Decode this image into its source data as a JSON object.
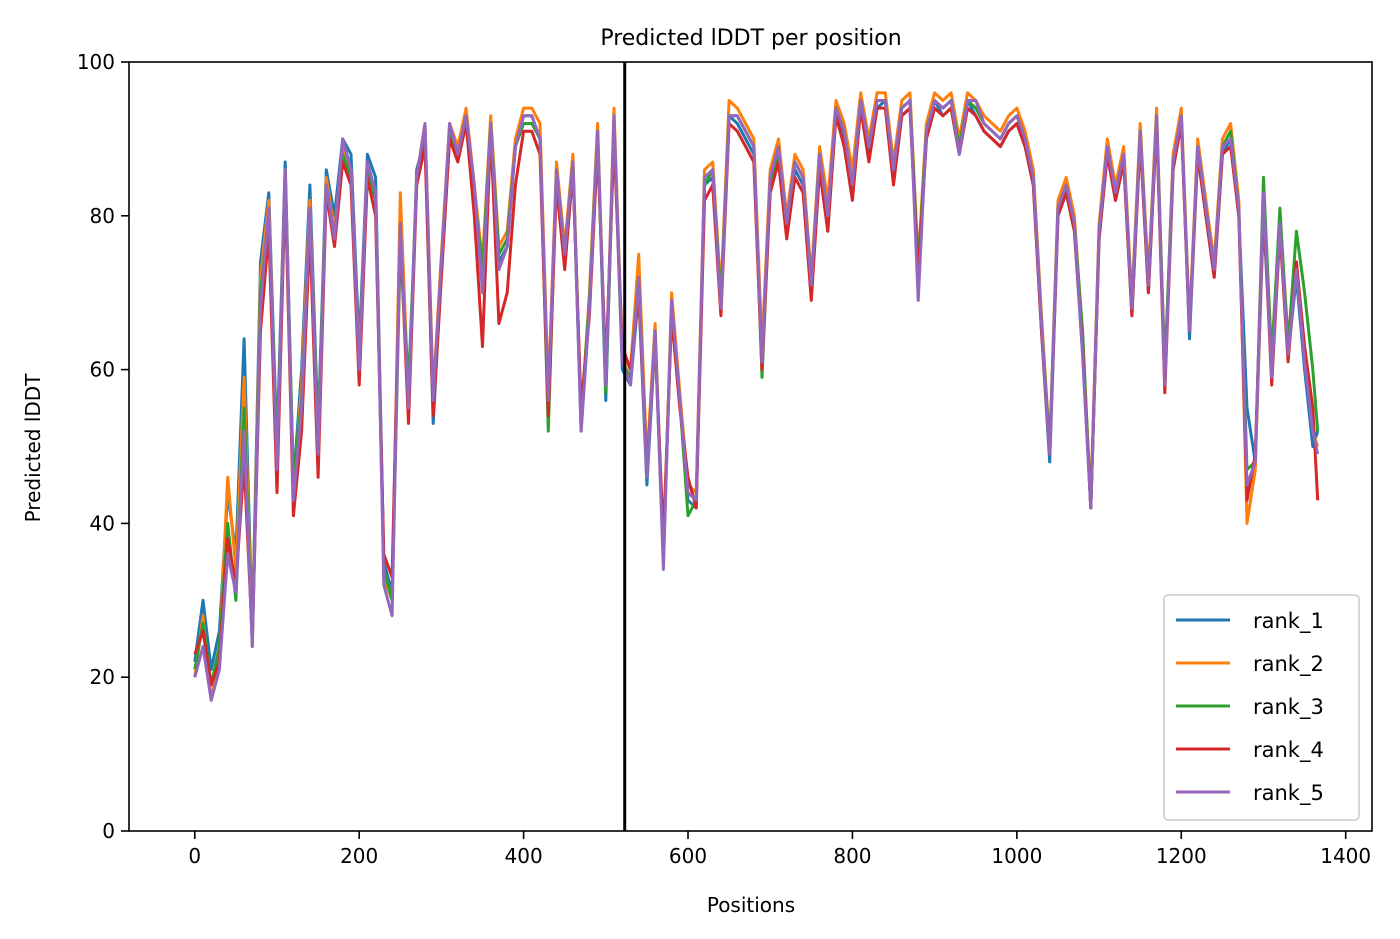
{
  "chart_data": {
    "type": "line",
    "title": "Predicted lDDT per position",
    "xlabel": "Positions",
    "ylabel": "Predicted lDDT",
    "xlim": [
      -80,
      1432
    ],
    "ylim": [
      0,
      100
    ],
    "xticks": [
      0,
      200,
      400,
      600,
      800,
      1000,
      1200,
      1400
    ],
    "yticks": [
      0,
      20,
      40,
      60,
      80,
      100
    ],
    "vline_x": 523,
    "legend_position": "lower-right",
    "grid": false,
    "x": [
      0,
      10,
      20,
      30,
      40,
      50,
      60,
      70,
      80,
      90,
      100,
      110,
      120,
      130,
      140,
      150,
      160,
      170,
      180,
      190,
      200,
      210,
      220,
      230,
      240,
      250,
      260,
      270,
      280,
      290,
      300,
      310,
      320,
      330,
      340,
      350,
      360,
      370,
      380,
      390,
      400,
      410,
      420,
      430,
      440,
      450,
      460,
      470,
      480,
      490,
      500,
      510,
      520,
      530,
      540,
      550,
      560,
      570,
      580,
      590,
      600,
      610,
      620,
      630,
      640,
      650,
      660,
      670,
      680,
      690,
      700,
      710,
      720,
      730,
      740,
      750,
      760,
      770,
      780,
      790,
      800,
      810,
      820,
      830,
      840,
      850,
      860,
      870,
      880,
      890,
      900,
      910,
      920,
      930,
      940,
      950,
      960,
      970,
      980,
      990,
      1000,
      1010,
      1020,
      1030,
      1040,
      1050,
      1060,
      1070,
      1080,
      1090,
      1100,
      1110,
      1120,
      1130,
      1140,
      1150,
      1160,
      1170,
      1180,
      1190,
      1200,
      1210,
      1220,
      1230,
      1240,
      1250,
      1260,
      1270,
      1280,
      1290,
      1300,
      1310,
      1320,
      1330,
      1340,
      1350,
      1360,
      1366
    ],
    "series": [
      {
        "name": "rank_1",
        "color": "#1f77b4",
        "values": [
          22,
          30,
          21,
          26,
          44,
          36,
          64,
          26,
          74,
          83,
          50,
          87,
          45,
          60,
          84,
          52,
          86,
          80,
          90,
          88,
          63,
          88,
          85,
          35,
          31,
          80,
          55,
          86,
          90,
          53,
          73,
          90,
          88,
          92,
          82,
          72,
          92,
          74,
          76,
          89,
          93,
          93,
          90,
          55,
          86,
          74,
          87,
          52,
          68,
          91,
          56,
          92,
          60,
          58,
          70,
          45,
          64,
          36,
          68,
          56,
          43,
          42,
          84,
          85,
          68,
          93,
          92,
          90,
          88,
          61,
          84,
          88,
          78,
          86,
          84,
          70,
          87,
          80,
          93,
          90,
          84,
          95,
          88,
          94,
          95,
          85,
          93,
          94,
          72,
          90,
          95,
          93,
          94,
          88,
          95,
          93,
          91,
          90,
          89,
          91,
          92,
          89,
          84,
          65,
          48,
          80,
          83,
          78,
          62,
          42,
          77,
          88,
          82,
          87,
          67,
          90,
          70,
          92,
          59,
          86,
          93,
          64,
          88,
          80,
          72,
          88,
          90,
          80,
          55,
          48,
          80,
          60,
          78,
          62,
          72,
          60,
          50,
          52
        ]
      },
      {
        "name": "rank_2",
        "color": "#ff7f0e",
        "values": [
          20,
          28,
          17,
          23,
          46,
          34,
          59,
          25,
          72,
          82,
          48,
          86,
          44,
          58,
          82,
          50,
          85,
          78,
          89,
          86,
          61,
          87,
          83,
          33,
          30,
          83,
          56,
          85,
          92,
          57,
          75,
          92,
          89,
          94,
          84,
          74,
          93,
          76,
          78,
          90,
          94,
          94,
          92,
          57,
          87,
          76,
          88,
          53,
          70,
          92,
          58,
          94,
          62,
          60,
          75,
          48,
          66,
          35,
          70,
          57,
          45,
          44,
          86,
          87,
          70,
          95,
          94,
          92,
          90,
          63,
          86,
          90,
          80,
          88,
          86,
          72,
          89,
          82,
          95,
          92,
          86,
          96,
          90,
          96,
          96,
          87,
          95,
          96,
          74,
          92,
          96,
          95,
          96,
          90,
          96,
          95,
          93,
          92,
          91,
          93,
          94,
          91,
          86,
          67,
          50,
          82,
          85,
          80,
          64,
          43,
          79,
          90,
          84,
          89,
          69,
          92,
          72,
          94,
          59,
          88,
          94,
          66,
          90,
          82,
          74,
          90,
          92,
          82,
          40,
          47,
          82,
          62,
          80,
          64,
          74,
          62,
          52,
          50
        ]
      },
      {
        "name": "rank_3",
        "color": "#2ca02c",
        "values": [
          21,
          27,
          19,
          24,
          40,
          30,
          55,
          24,
          70,
          80,
          49,
          85,
          46,
          56,
          80,
          51,
          84,
          77,
          88,
          85,
          60,
          86,
          82,
          34,
          30,
          76,
          58,
          84,
          91,
          55,
          74,
          91,
          88,
          93,
          83,
          73,
          92,
          75,
          77,
          89,
          92,
          92,
          90,
          52,
          86,
          75,
          87,
          54,
          69,
          91,
          57,
          92,
          61,
          59,
          72,
          46,
          65,
          36,
          68,
          56,
          41,
          43,
          84,
          86,
          69,
          93,
          93,
          91,
          89,
          59,
          84,
          88,
          79,
          87,
          85,
          71,
          88,
          78,
          94,
          91,
          83,
          95,
          89,
          95,
          95,
          86,
          94,
          95,
          73,
          91,
          95,
          94,
          95,
          89,
          95,
          94,
          92,
          91,
          90,
          92,
          93,
          90,
          85,
          66,
          50,
          81,
          84,
          79,
          65,
          42,
          78,
          89,
          83,
          88,
          68,
          91,
          71,
          93,
          60,
          87,
          93,
          65,
          89,
          81,
          73,
          89,
          91,
          81,
          47,
          48,
          85,
          61,
          81,
          63,
          78,
          70,
          60,
          52
        ]
      },
      {
        "name": "rank_4",
        "color": "#d62728",
        "values": [
          23,
          26,
          19,
          22,
          38,
          32,
          48,
          25,
          65,
          78,
          44,
          84,
          41,
          52,
          78,
          46,
          83,
          76,
          87,
          84,
          58,
          85,
          80,
          36,
          33,
          78,
          53,
          84,
          89,
          54,
          72,
          90,
          87,
          92,
          80,
          63,
          91,
          66,
          70,
          84,
          91,
          91,
          88,
          54,
          84,
          73,
          86,
          55,
          67,
          89,
          60,
          90,
          63,
          60,
          70,
          47,
          64,
          38,
          67,
          55,
          46,
          42,
          82,
          84,
          67,
          92,
          91,
          89,
          87,
          60,
          83,
          87,
          77,
          85,
          83,
          69,
          86,
          78,
          93,
          89,
          82,
          94,
          87,
          94,
          94,
          84,
          93,
          94,
          72,
          90,
          94,
          93,
          94,
          88,
          94,
          93,
          91,
          90,
          89,
          91,
          92,
          89,
          84,
          65,
          49,
          80,
          83,
          78,
          63,
          42,
          77,
          88,
          82,
          87,
          67,
          90,
          70,
          92,
          57,
          86,
          92,
          65,
          88,
          80,
          72,
          88,
          89,
          80,
          43,
          49,
          82,
          58,
          78,
          61,
          74,
          63,
          55,
          43
        ]
      },
      {
        "name": "rank_5",
        "color": "#9467bd",
        "values": [
          20,
          24,
          17,
          21,
          36,
          31,
          52,
          24,
          68,
          81,
          47,
          86,
          43,
          55,
          81,
          49,
          84,
          77,
          90,
          86,
          60,
          87,
          83,
          32,
          28,
          79,
          55,
          85,
          92,
          56,
          74,
          92,
          88,
          93,
          84,
          70,
          92,
          73,
          76,
          89,
          93,
          93,
          90,
          56,
          86,
          75,
          87,
          52,
          68,
          91,
          58,
          93,
          61,
          58,
          72,
          46,
          65,
          34,
          69,
          56,
          44,
          43,
          85,
          86,
          68,
          93,
          93,
          91,
          89,
          61,
          85,
          89,
          79,
          87,
          85,
          71,
          88,
          80,
          94,
          91,
          84,
          95,
          89,
          95,
          95,
          86,
          94,
          95,
          69,
          91,
          95,
          94,
          95,
          88,
          95,
          95,
          92,
          91,
          90,
          92,
          93,
          90,
          85,
          66,
          49,
          81,
          84,
          79,
          62,
          42,
          78,
          89,
          83,
          88,
          68,
          91,
          71,
          93,
          58,
          87,
          93,
          65,
          89,
          81,
          73,
          89,
          90,
          81,
          45,
          48,
          83,
          59,
          79,
          62,
          73,
          61,
          52,
          49
        ]
      }
    ]
  }
}
